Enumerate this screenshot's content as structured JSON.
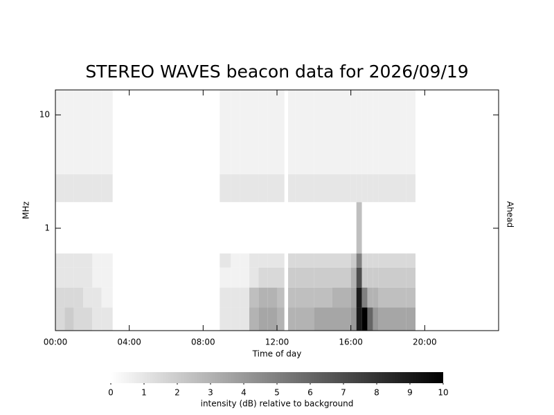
{
  "chart_data": {
    "type": "heatmap",
    "title": "STEREO WAVES beacon data for 2026/09/19",
    "xlabel": "Time of day",
    "ylabel": "MHz",
    "right_label": "Ahead",
    "right_label_color": "#cc0000",
    "xlim": [
      0,
      24
    ],
    "xticks": [
      {
        "value": 0,
        "label": "00:00"
      },
      {
        "value": 4,
        "label": "04:00"
      },
      {
        "value": 8,
        "label": "08:00"
      },
      {
        "value": 12,
        "label": "12:00"
      },
      {
        "value": 16,
        "label": "16:00"
      },
      {
        "value": 20,
        "label": "20:00"
      }
    ],
    "ylim": [
      0.125,
      16.6
    ],
    "yscale": "log",
    "yticks": [
      1,
      10
    ],
    "x_edges": [
      0,
      0.5,
      1,
      1.5,
      2,
      2.5,
      3.1,
      8.9,
      9.5,
      10,
      10.5,
      11,
      11.5,
      12,
      12.4,
      12.6,
      13,
      14,
      15,
      16,
      16.3,
      16.6,
      16.9,
      17.2,
      17.5,
      18,
      19,
      19.5
    ],
    "y_edges": [
      0.125,
      0.2,
      0.3,
      0.45,
      0.6,
      1.7,
      3,
      16.6
    ],
    "values": [
      [
        1.5,
        2,
        1.5,
        1.5,
        1,
        1,
        null,
        1,
        1,
        1,
        3,
        3.5,
        3.5,
        3,
        null,
        3,
        3,
        3.5,
        3.5,
        4,
        9,
        10,
        6,
        4,
        3.5,
        3.5,
        3.5
      ],
      [
        1.5,
        1.5,
        1.5,
        1,
        1,
        0.5,
        null,
        1,
        1,
        1,
        2.5,
        3,
        3,
        2.5,
        null,
        2.5,
        2.5,
        2.5,
        3,
        3.5,
        9,
        5,
        3,
        3,
        2.5,
        2.5,
        2.5
      ],
      [
        1,
        1,
        1,
        1,
        0.5,
        0.5,
        null,
        0.5,
        0.5,
        0.5,
        1,
        1.5,
        1.5,
        1.5,
        null,
        2,
        2,
        2,
        2,
        3,
        7,
        2,
        2,
        2,
        2,
        2,
        2
      ],
      [
        1,
        1,
        1,
        1,
        0.5,
        0.5,
        null,
        1,
        0.5,
        0.5,
        1,
        1,
        1,
        1,
        null,
        1.5,
        1.5,
        1.5,
        1.5,
        2,
        5,
        1.5,
        1.5,
        1.5,
        1.5,
        1.5,
        1.5
      ],
      [
        0,
        0,
        0,
        0,
        0,
        0,
        null,
        0,
        0,
        0,
        0,
        0,
        0,
        0,
        null,
        0,
        0,
        0,
        0,
        0,
        2.5,
        0,
        0,
        0,
        0,
        0,
        0
      ],
      [
        1,
        1,
        1,
        1,
        1,
        1,
        null,
        1,
        1,
        1,
        1,
        1,
        1,
        1,
        null,
        1,
        1,
        1,
        1,
        1,
        1,
        1,
        1,
        1,
        1,
        1,
        1
      ],
      [
        0.5,
        0.5,
        0.5,
        0.5,
        0.5,
        0.5,
        null,
        0.5,
        0.5,
        0.5,
        0.5,
        0.5,
        0.5,
        0.5,
        null,
        0.5,
        0.5,
        0.5,
        0.5,
        0.5,
        0.5,
        0.5,
        0.5,
        0.5,
        0.5,
        0.5,
        0.5
      ]
    ],
    "colormap": [
      "#ffffff",
      "#000000"
    ],
    "colorbar": {
      "lim": [
        0,
        10
      ],
      "ticks": [
        0,
        1,
        2,
        3,
        4,
        5,
        6,
        7,
        8,
        9,
        10
      ],
      "label": "intensity (dB) relative to background"
    }
  }
}
